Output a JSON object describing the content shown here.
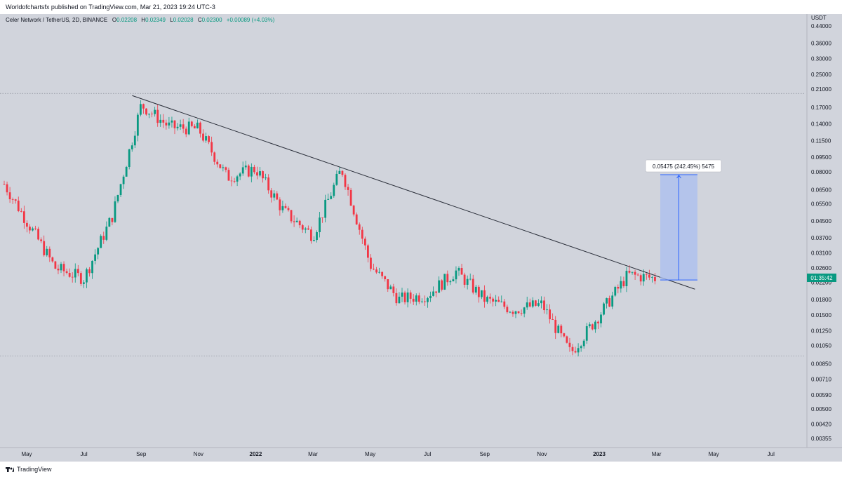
{
  "header": {
    "published_text": "Worldofchartsfx published on TradingView.com, Mar 21, 2023 19:24 UTC-3"
  },
  "legend": {
    "symbol": "Celer Network / TetherUS, 2D, BINANCE",
    "open_label": "O",
    "open": "0.02208",
    "high_label": "H",
    "high": "0.02349",
    "low_label": "L",
    "low": "0.02028",
    "close_label": "C",
    "close": "0.02300",
    "change": "+0.00089 (+4.03%)"
  },
  "footer": {
    "brand": "TradingView",
    "logo_icon": "tradingview-logo-icon"
  },
  "colors": {
    "background": "#d1d4dc",
    "up": "#089981",
    "down": "#f23645",
    "trendline": "#2a2e39",
    "measure_fill": "#a9bff0",
    "measure_border": "#2962ff",
    "price_tag": "#089981"
  },
  "chart_data": {
    "type": "candlestick",
    "title": "",
    "currency": "USDT",
    "y_scale": "log",
    "y_ticks": [
      "0.44000",
      "0.36000",
      "0.30000",
      "0.25000",
      "0.21000",
      "0.17000",
      "0.14000",
      "0.11500",
      "0.09500",
      "0.08000",
      "0.06500",
      "0.05500",
      "0.04500",
      "0.03700",
      "0.03100",
      "0.02600",
      "0.02200",
      "0.01800",
      "0.01500",
      "0.01250",
      "0.01050",
      "0.00850",
      "0.00710",
      "0.00590",
      "0.00500",
      "0.00420",
      "0.00355"
    ],
    "x_ticks": [
      "May",
      "Jul",
      "Sep",
      "Nov",
      "2022",
      "Mar",
      "May",
      "Jul",
      "Sep",
      "Nov",
      "2023",
      "Mar",
      "May",
      "Jul"
    ],
    "x_ticks_bold": [
      "2022",
      "2023"
    ],
    "current_price_tag": "01:35:42",
    "grid": false,
    "horizontal_levels": [
      0.2,
      0.0093
    ],
    "trendline": {
      "from": {
        "date": "Aug 2021",
        "price": 0.195
      },
      "to": {
        "date": "Apr 2023",
        "price": 0.0203
      }
    },
    "measure_box": {
      "label": "0.05475 (242.45%) 5475",
      "from_price": 0.0226,
      "to_price": 0.0774,
      "from_date": "Mar 2023",
      "to_date": "Apr 2023"
    },
    "series": [
      {
        "date": "Apr 2021",
        "close": 0.078
      },
      {
        "date": "Jun 2021",
        "close": 0.026
      },
      {
        "date": "Jul 2021",
        "close": 0.023
      },
      {
        "date": "Aug 2021",
        "close": 0.048
      },
      {
        "date": "Sep 2021",
        "close": 0.175
      },
      {
        "date": "Oct 2021",
        "close": 0.135
      },
      {
        "date": "Nov 2021",
        "close": 0.132
      },
      {
        "date": "Dec 2021",
        "close": 0.075
      },
      {
        "date": "Jan 2022",
        "close": 0.083
      },
      {
        "date": "Feb 2022",
        "close": 0.05
      },
      {
        "date": "Mar 2022",
        "close": 0.038
      },
      {
        "date": "Apr 2022",
        "close": 0.083
      },
      {
        "date": "May 2022",
        "close": 0.027
      },
      {
        "date": "Jun 2022",
        "close": 0.018
      },
      {
        "date": "Jul 2022",
        "close": 0.019
      },
      {
        "date": "Aug 2022",
        "close": 0.025
      },
      {
        "date": "Sep 2022",
        "close": 0.018
      },
      {
        "date": "Oct 2022",
        "close": 0.016
      },
      {
        "date": "Nov 2022",
        "close": 0.017
      },
      {
        "date": "Dec 2022",
        "close": 0.0096
      },
      {
        "date": "Jan 2023",
        "close": 0.015
      },
      {
        "date": "Feb 2023",
        "close": 0.024
      },
      {
        "date": "Mar 2023",
        "close": 0.023
      }
    ]
  }
}
